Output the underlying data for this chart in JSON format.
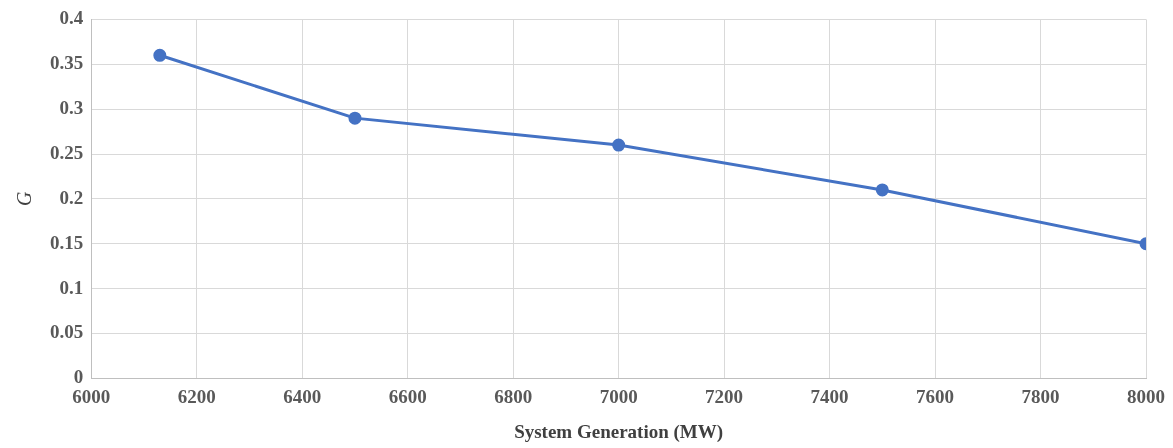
{
  "chart_data": {
    "type": "line",
    "xlabel": "System Generation (MW)",
    "ylabel": "G",
    "x": [
      6130,
      6500,
      7000,
      7500,
      8000
    ],
    "series": [
      {
        "color": "#4472c4",
        "values": [
          0.36,
          0.29,
          0.26,
          0.21,
          0.15
        ]
      }
    ],
    "xlim": [
      6000,
      8000
    ],
    "xticks": [
      6000,
      6200,
      6400,
      6600,
      6800,
      7000,
      7200,
      7400,
      7600,
      7800,
      8000
    ],
    "ylim": [
      0,
      0.4
    ],
    "yticks": [
      0,
      0.05,
      0.1,
      0.15,
      0.2,
      0.25,
      0.3,
      0.35,
      0.4
    ],
    "grid": true,
    "legend": false,
    "marker": "circle",
    "line_style": "solid"
  }
}
